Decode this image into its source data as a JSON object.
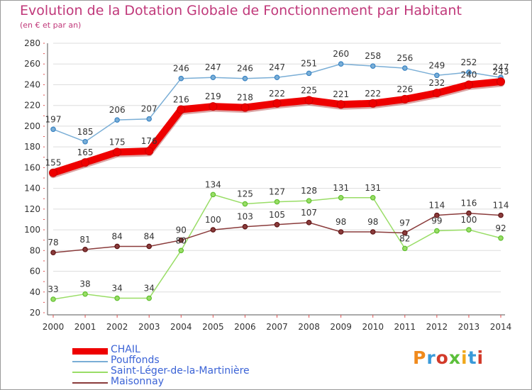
{
  "title": "Evolution de la Dotation Globale de Fonctionnement par Habitant",
  "subtitle": "(en € et par an)",
  "logo": {
    "text": "Proxiti",
    "colors": [
      "#f08a1c",
      "#3a9ad9",
      "#d23a2a",
      "#5bbf3a",
      "#f0a81c",
      "#3a9ad9",
      "#d23a2a"
    ]
  },
  "chart_data": {
    "type": "line",
    "title": "Evolution de la Dotation Globale de Fonctionnement par Habitant",
    "subtitle": "(en € et par an)",
    "xlabel": "",
    "ylabel": "",
    "x": [
      "2000",
      "2001",
      "2002",
      "2003",
      "2004",
      "2005",
      "2006",
      "2007",
      "2008",
      "2009",
      "2010",
      "2011",
      "2012",
      "2013",
      "2014"
    ],
    "ylim": [
      20,
      280
    ],
    "yticks": [
      20,
      40,
      60,
      80,
      100,
      120,
      140,
      160,
      180,
      200,
      220,
      240,
      260,
      280
    ],
    "grid": true,
    "legend_position": "bottom-left",
    "series": [
      {
        "name": "CHAIL",
        "color": "#ee0000",
        "emphasis": true,
        "values": [
          155,
          165,
          175,
          176,
          216,
          219,
          218,
          222,
          225,
          221,
          222,
          226,
          232,
          240,
          243
        ],
        "labels": [
          "155",
          "165",
          "175",
          "176",
          "216",
          "219",
          "218",
          "222",
          "225",
          "221",
          "222",
          "226",
          "232",
          "240",
          "243"
        ]
      },
      {
        "name": "Pouffonds",
        "color": "#7aaed6",
        "marker": "#3a84c4",
        "values": [
          197,
          185,
          206,
          207,
          246,
          247,
          246,
          247,
          251,
          260,
          258,
          256,
          249,
          252,
          247
        ],
        "labels": [
          "197",
          "185",
          "206",
          "207",
          "246",
          "247",
          "246",
          "247",
          "251",
          "260",
          "258",
          "256",
          "249",
          "252",
          "247"
        ]
      },
      {
        "name": "Saint-Léger-de-la-Martinière",
        "color": "#99dd66",
        "marker": "#5fbf2e",
        "values": [
          33,
          38,
          34,
          34,
          80,
          134,
          125,
          127,
          128,
          131,
          131,
          82,
          99,
          100,
          92
        ],
        "labels": [
          "33",
          "38",
          "34",
          "34",
          "80",
          "134",
          "125",
          "127",
          "128",
          "131",
          "131",
          "82",
          "99",
          "100",
          "92"
        ]
      },
      {
        "name": "Maisonnay",
        "color": "#8a3b3b",
        "marker": "#5e1515",
        "values": [
          78,
          81,
          84,
          84,
          90,
          100,
          103,
          105,
          107,
          98,
          98,
          97,
          114,
          116,
          114
        ],
        "labels": [
          "78",
          "81",
          "84",
          "84",
          "90",
          "100",
          "103",
          "105",
          "107",
          "98",
          "98",
          "97",
          "114",
          "116",
          "114"
        ]
      }
    ]
  }
}
